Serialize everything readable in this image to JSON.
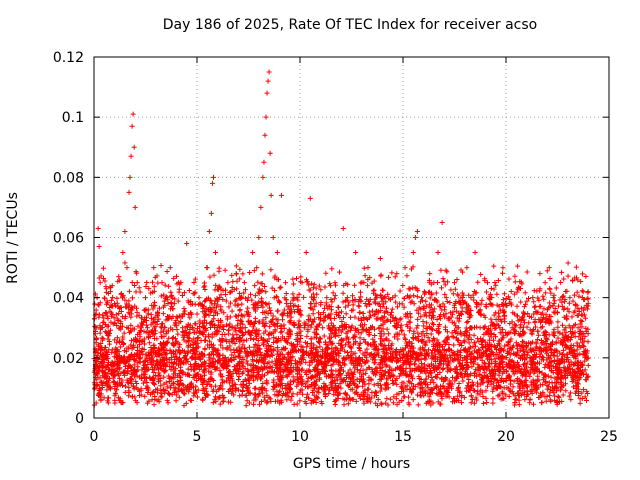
{
  "chart_data": {
    "type": "scatter",
    "title": "Day 186 of 2025, Rate Of TEC Index for receiver acso",
    "xlabel": "GPS time / hours",
    "ylabel": "ROTI / TECUs",
    "xlim": [
      0,
      25
    ],
    "ylim": [
      0,
      0.12
    ],
    "xticks": [
      0,
      5,
      10,
      15,
      20,
      25
    ],
    "yticks": [
      0,
      0.02,
      0.04,
      0.06,
      0.08,
      0.1,
      0.12
    ],
    "ytick_labels": [
      "0",
      "0.02",
      "0.04",
      "0.06",
      "0.08",
      "0.1",
      "0.12"
    ],
    "grid": true,
    "marker": "+",
    "color": "#ff0000",
    "points": [
      [
        0.05,
        0.01
      ],
      [
        0.1,
        0.025
      ],
      [
        0.15,
        0.04
      ],
      [
        0.2,
        0.063
      ],
      [
        0.25,
        0.057
      ],
      [
        0.3,
        0.045
      ],
      [
        0.35,
        0.03
      ],
      [
        0.4,
        0.02
      ],
      [
        0.5,
        0.015
      ],
      [
        0.6,
        0.035
      ],
      [
        0.7,
        0.028
      ],
      [
        0.8,
        0.042
      ],
      [
        0.9,
        0.018
      ],
      [
        1.0,
        0.038
      ],
      [
        1.1,
        0.025
      ],
      [
        1.2,
        0.047
      ],
      [
        1.3,
        0.032
      ],
      [
        1.4,
        0.055
      ],
      [
        1.5,
        0.062
      ],
      [
        1.6,
        0.05
      ],
      [
        1.7,
        0.075
      ],
      [
        1.75,
        0.08
      ],
      [
        1.8,
        0.087
      ],
      [
        1.85,
        0.097
      ],
      [
        1.9,
        0.101
      ],
      [
        1.95,
        0.09
      ],
      [
        2.0,
        0.07
      ],
      [
        2.1,
        0.045
      ],
      [
        2.3,
        0.03
      ],
      [
        2.5,
        0.04
      ],
      [
        2.7,
        0.025
      ],
      [
        2.9,
        0.05
      ],
      [
        3.1,
        0.035
      ],
      [
        3.3,
        0.045
      ],
      [
        3.5,
        0.028
      ],
      [
        3.7,
        0.05
      ],
      [
        3.9,
        0.038
      ],
      [
        4.1,
        0.045
      ],
      [
        4.3,
        0.03
      ],
      [
        4.5,
        0.058
      ],
      [
        4.7,
        0.035
      ],
      [
        4.9,
        0.025
      ],
      [
        5.1,
        0.04
      ],
      [
        5.3,
        0.03
      ],
      [
        5.5,
        0.05
      ],
      [
        5.6,
        0.062
      ],
      [
        5.7,
        0.068
      ],
      [
        5.75,
        0.078
      ],
      [
        5.8,
        0.08
      ],
      [
        5.9,
        0.055
      ],
      [
        6.1,
        0.04
      ],
      [
        6.3,
        0.035
      ],
      [
        6.5,
        0.045
      ],
      [
        6.7,
        0.03
      ],
      [
        6.9,
        0.048
      ],
      [
        7.1,
        0.04
      ],
      [
        7.3,
        0.045
      ],
      [
        7.5,
        0.035
      ],
      [
        7.7,
        0.055
      ],
      [
        7.9,
        0.05
      ],
      [
        8.0,
        0.06
      ],
      [
        8.1,
        0.07
      ],
      [
        8.2,
        0.08
      ],
      [
        8.25,
        0.085
      ],
      [
        8.3,
        0.094
      ],
      [
        8.35,
        0.1
      ],
      [
        8.4,
        0.108
      ],
      [
        8.45,
        0.112
      ],
      [
        8.5,
        0.115
      ],
      [
        8.55,
        0.088
      ],
      [
        8.6,
        0.074
      ],
      [
        8.7,
        0.06
      ],
      [
        8.9,
        0.055
      ],
      [
        9.1,
        0.074
      ],
      [
        9.3,
        0.045
      ],
      [
        9.5,
        0.035
      ],
      [
        9.7,
        0.04
      ],
      [
        9.9,
        0.03
      ],
      [
        10.1,
        0.045
      ],
      [
        10.3,
        0.055
      ],
      [
        10.5,
        0.073
      ],
      [
        10.7,
        0.04
      ],
      [
        10.9,
        0.035
      ],
      [
        11.1,
        0.03
      ],
      [
        11.3,
        0.04
      ],
      [
        11.5,
        0.028
      ],
      [
        11.7,
        0.045
      ],
      [
        11.9,
        0.035
      ],
      [
        12.1,
        0.063
      ],
      [
        12.3,
        0.04
      ],
      [
        12.5,
        0.03
      ],
      [
        12.7,
        0.055
      ],
      [
        12.9,
        0.035
      ],
      [
        13.1,
        0.045
      ],
      [
        13.3,
        0.05
      ],
      [
        13.5,
        0.03
      ],
      [
        13.7,
        0.04
      ],
      [
        13.9,
        0.053
      ],
      [
        14.1,
        0.035
      ],
      [
        14.3,
        0.028
      ],
      [
        14.5,
        0.04
      ],
      [
        14.7,
        0.048
      ],
      [
        14.9,
        0.033
      ],
      [
        15.1,
        0.05
      ],
      [
        15.3,
        0.04
      ],
      [
        15.5,
        0.055
      ],
      [
        15.6,
        0.06
      ],
      [
        15.7,
        0.062
      ],
      [
        15.9,
        0.04
      ],
      [
        16.1,
        0.035
      ],
      [
        16.3,
        0.048
      ],
      [
        16.5,
        0.045
      ],
      [
        16.7,
        0.055
      ],
      [
        16.9,
        0.065
      ],
      [
        17.1,
        0.04
      ],
      [
        17.3,
        0.035
      ],
      [
        17.5,
        0.045
      ],
      [
        17.7,
        0.03
      ],
      [
        17.9,
        0.04
      ],
      [
        18.1,
        0.05
      ],
      [
        18.3,
        0.04
      ],
      [
        18.5,
        0.055
      ],
      [
        18.7,
        0.035
      ],
      [
        18.9,
        0.03
      ],
      [
        19.1,
        0.045
      ],
      [
        19.3,
        0.04
      ],
      [
        19.5,
        0.035
      ],
      [
        19.7,
        0.03
      ],
      [
        19.9,
        0.035
      ],
      [
        20.1,
        0.025
      ],
      [
        20.3,
        0.03
      ],
      [
        20.5,
        0.025
      ],
      [
        20.7,
        0.02
      ],
      [
        20.9,
        0.018
      ],
      [
        21.1,
        0.025
      ],
      [
        21.3,
        0.04
      ],
      [
        21.5,
        0.035
      ],
      [
        21.7,
        0.03
      ],
      [
        21.9,
        0.045
      ],
      [
        22.1,
        0.05
      ],
      [
        22.3,
        0.04
      ],
      [
        22.5,
        0.035
      ],
      [
        22.7,
        0.025
      ],
      [
        22.9,
        0.03
      ],
      [
        23.1,
        0.04
      ],
      [
        23.3,
        0.035
      ],
      [
        23.5,
        0.03
      ],
      [
        23.7,
        0.025
      ],
      [
        23.9,
        0.02
      ]
    ]
  }
}
